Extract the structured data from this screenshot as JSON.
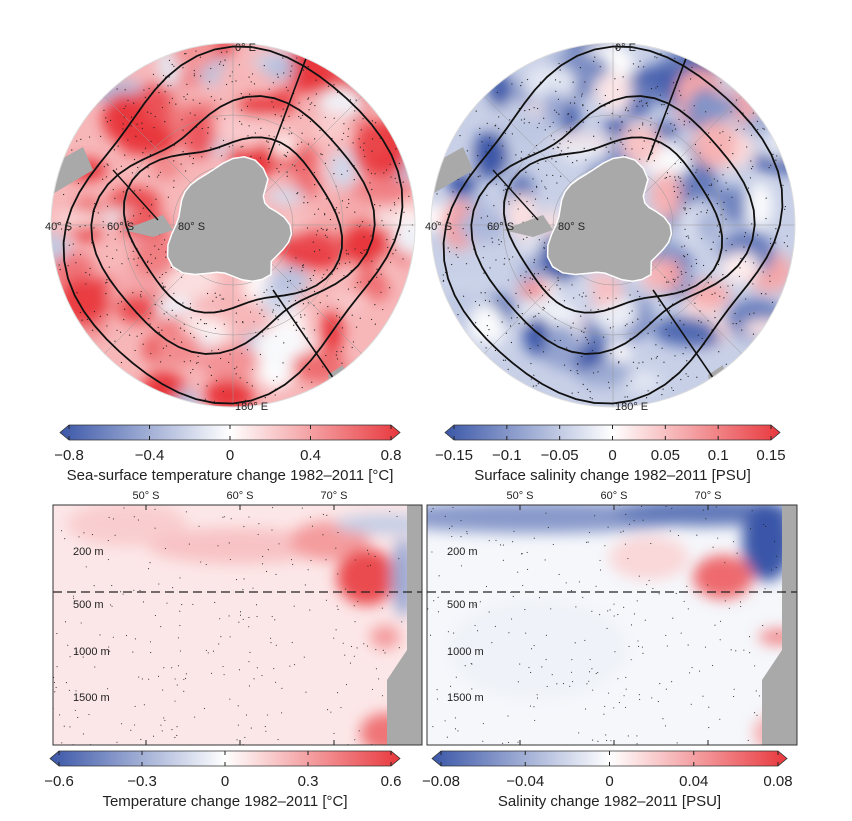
{
  "chart_data": [
    {
      "type": "heatmap",
      "panel": "top-left",
      "projection": "south-polar",
      "map_labels": {
        "top": "0° E",
        "bottom": "180° E",
        "lat1": "40° S",
        "lat2": "60° S",
        "lat3": "80° S"
      },
      "colorbar": {
        "ticks": [
          "−0.8",
          "−0.4",
          "0",
          "0.4",
          "0.8"
        ],
        "range": [
          -0.8,
          0.8
        ],
        "title": "Sea-surface temperature change 1982–2011 [°C]"
      },
      "dominant_sign": "positive"
    },
    {
      "type": "heatmap",
      "panel": "top-right",
      "projection": "south-polar",
      "map_labels": {
        "top": "0° E",
        "bottom": "180° E",
        "lat1": "40° S",
        "lat2": "60° S",
        "lat3": "80° S"
      },
      "colorbar": {
        "ticks": [
          "−0.15",
          "−0.1",
          "−0.05",
          "0",
          "0.05",
          "0.1",
          "0.15"
        ],
        "range": [
          -0.15,
          0.15
        ],
        "title": "Surface salinity change 1982–2011 [PSU]"
      },
      "dominant_sign": "negative"
    },
    {
      "type": "heatmap",
      "panel": "bottom-left",
      "x_ticks": [
        "50° S",
        "60° S",
        "70° S"
      ],
      "y_ticks": [
        "200 m",
        "500 m",
        "1000 m",
        "1500 m"
      ],
      "colorbar": {
        "ticks": [
          "−0.6",
          "−0.3",
          "0",
          "0.3",
          "0.6"
        ],
        "range": [
          -0.6,
          0.6
        ],
        "title": "Temperature change 1982–2011 [°C]"
      }
    },
    {
      "type": "heatmap",
      "panel": "bottom-right",
      "x_ticks": [
        "50° S",
        "60° S",
        "70° S"
      ],
      "y_ticks": [
        "200 m",
        "500 m",
        "1000 m",
        "1500 m"
      ],
      "colorbar": {
        "ticks": [
          "−0.08",
          "−0.04",
          "0",
          "0.04",
          "0.08"
        ],
        "range": [
          -0.08,
          0.08
        ],
        "title": "Salinity change 1982–2011 [PSU]"
      }
    }
  ],
  "colors": {
    "negative": "#3b57a8",
    "neutral": "#ffffff",
    "positive": "#e8383d",
    "land": "#a9a9a9"
  }
}
